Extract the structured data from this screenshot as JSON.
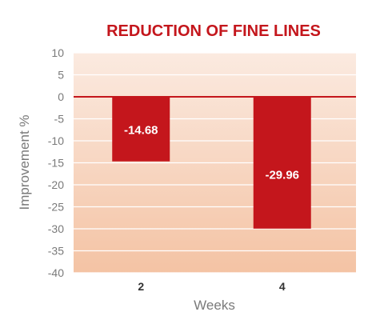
{
  "chart_data": {
    "type": "bar",
    "title": "REDUCTION OF FINE LINES",
    "xlabel": "Weeks",
    "ylabel": "Improvement %",
    "categories": [
      "2",
      "4"
    ],
    "values": [
      -14.68,
      -29.96
    ],
    "data_labels": [
      "-14.68",
      "-29.96"
    ],
    "ylim": [
      -40,
      10
    ],
    "yticks": [
      10,
      5,
      0,
      -5,
      -10,
      -15,
      -20,
      -25,
      -30,
      -35,
      -40
    ],
    "grid": true,
    "legend": "none"
  },
  "colors": {
    "title": "#c4161c",
    "bar": "#c4161c",
    "zero_line": "#c4161c",
    "plot_gradient_top": "#fbeae0",
    "plot_gradient_bottom": "#f4c3a4",
    "grid": "#ffffff",
    "axis_text": "#7a7a7a",
    "category_text": "#333333",
    "data_label_text": "#ffffff"
  }
}
